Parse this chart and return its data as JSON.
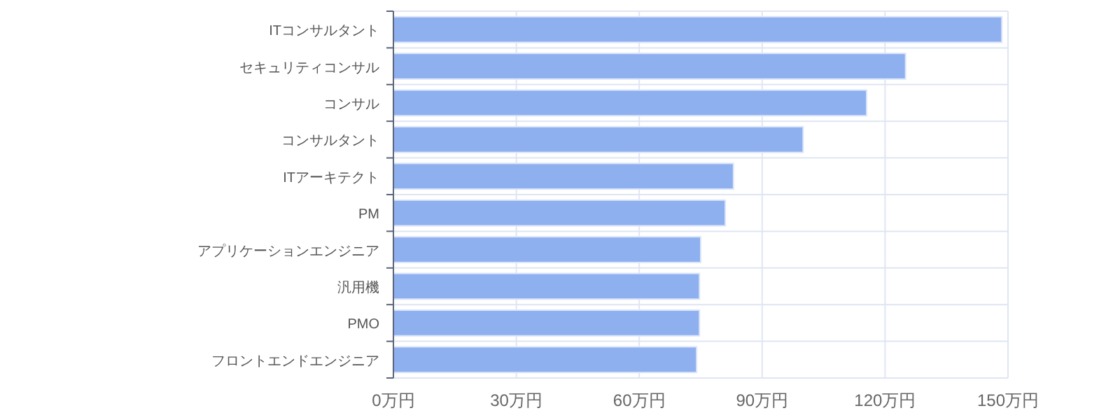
{
  "chart_data": {
    "type": "bar",
    "orientation": "horizontal",
    "categories": [
      "ITコンサルタント",
      "セキュリティコンサル",
      "コンサル",
      "コンサルタント",
      "ITアーキテクト",
      "PM",
      "アプリケーションエンジニア",
      "汎用機",
      "PMO",
      "フロントエンドエンジニア"
    ],
    "values": [
      148.5,
      125,
      115.5,
      100,
      83,
      81,
      75,
      74.7,
      74.7,
      74
    ],
    "color": "#8fb0ef",
    "xlim": [
      0,
      150
    ],
    "xticks": [
      {
        "value": 0,
        "label": "0万円"
      },
      {
        "value": 30,
        "label": "30万円"
      },
      {
        "value": 60,
        "label": "60万円"
      },
      {
        "value": 90,
        "label": "90万円"
      },
      {
        "value": 120,
        "label": "120万円"
      },
      {
        "value": 150,
        "label": "150万円"
      }
    ],
    "grid": true
  }
}
